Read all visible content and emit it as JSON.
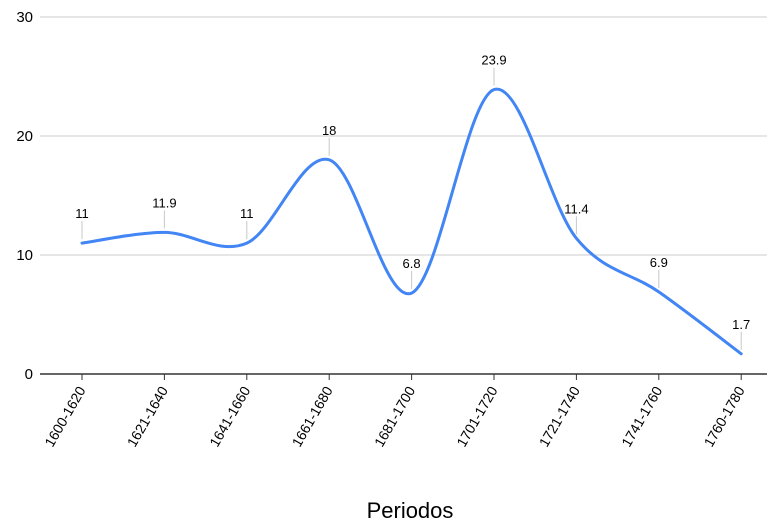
{
  "chart_data": {
    "type": "line",
    "title": "",
    "xlabel": "Periodos",
    "ylabel": "",
    "ylim": [
      0,
      30
    ],
    "yticks": [
      0,
      10,
      20,
      30
    ],
    "grid": true,
    "legend": "none",
    "smooth": true,
    "categories": [
      "1600-1620",
      "1621-1640",
      "1641-1660",
      "1661-1680",
      "1681-1700",
      "1701-1720",
      "1721-1740",
      "1741-1760",
      "1760-1780"
    ],
    "series": [
      {
        "values": [
          11,
          11.9,
          11,
          18,
          6.8,
          23.9,
          11.4,
          6.9,
          1.7
        ],
        "labels": [
          "11",
          "11.9",
          "11",
          "18",
          "6.8",
          "23.9",
          "11.4",
          "6.9",
          "1.7"
        ],
        "color": "#4285f4"
      }
    ]
  },
  "colors": {
    "line": "#4285f4",
    "grid": "#cccccc",
    "axis": "#333333",
    "leader": "#c8c8c8"
  }
}
